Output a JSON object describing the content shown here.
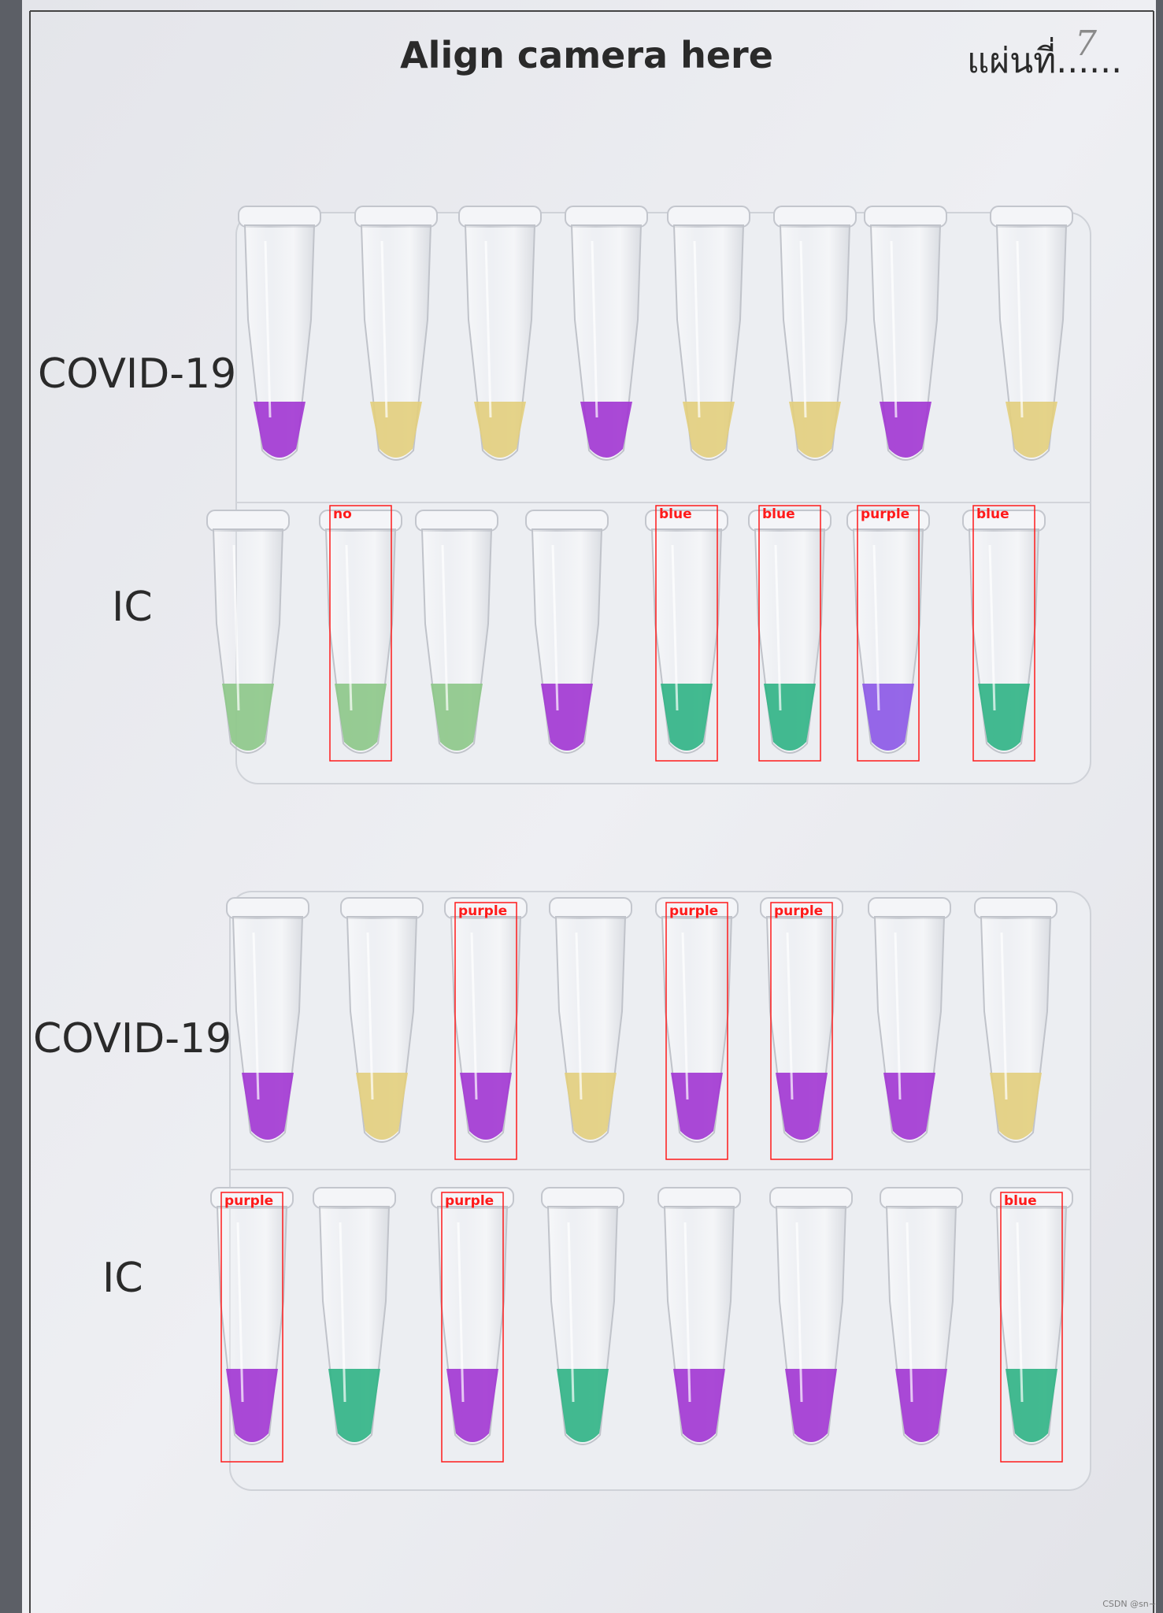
{
  "sheet": {
    "title": "Align camera here",
    "thai_label": "แผ่นที่......",
    "handwritten_sheet_number": "7"
  },
  "colors": {
    "purple": "#a33ad3",
    "yellow": "#e3cf7f",
    "green_pale": "#8ec88a",
    "teal": "#33b487",
    "violet": "#8d5ae6",
    "detection_box": "#ff1a1a"
  },
  "rows": [
    {
      "label": "COVID-19",
      "tubes": [
        "purple",
        "yellow",
        "yellow",
        "purple",
        "yellow",
        "yellow",
        "purple",
        "yellow"
      ]
    },
    {
      "label": "IC",
      "tubes": [
        "green_pale",
        "green_pale",
        "green_pale",
        "purple",
        "teal",
        "teal",
        "violet",
        "teal"
      ]
    },
    {
      "label": "COVID-19",
      "tubes": [
        "purple",
        "yellow",
        "purple",
        "yellow",
        "purple",
        "purple",
        "purple",
        "yellow"
      ]
    },
    {
      "label": "IC",
      "tubes": [
        "purple",
        "teal",
        "purple",
        "teal",
        "purple",
        "purple",
        "purple",
        "teal"
      ]
    }
  ],
  "detections": [
    {
      "label": "no",
      "row": 1,
      "tube": 1
    },
    {
      "label": "blue",
      "row": 1,
      "tube": 4
    },
    {
      "label": "blue",
      "row": 1,
      "tube": 5
    },
    {
      "label": "purple",
      "row": 1,
      "tube": 6
    },
    {
      "label": "blue",
      "row": 1,
      "tube": 7
    },
    {
      "label": "purple",
      "row": 2,
      "tube": 2
    },
    {
      "label": "purple",
      "row": 2,
      "tube": 4
    },
    {
      "label": "purple",
      "row": 2,
      "tube": 5
    },
    {
      "label": "purple",
      "row": 3,
      "tube": 0
    },
    {
      "label": "purple",
      "row": 3,
      "tube": 2
    },
    {
      "label": "blue",
      "row": 3,
      "tube": 7
    }
  ],
  "watermark": "CSDN @sn~"
}
